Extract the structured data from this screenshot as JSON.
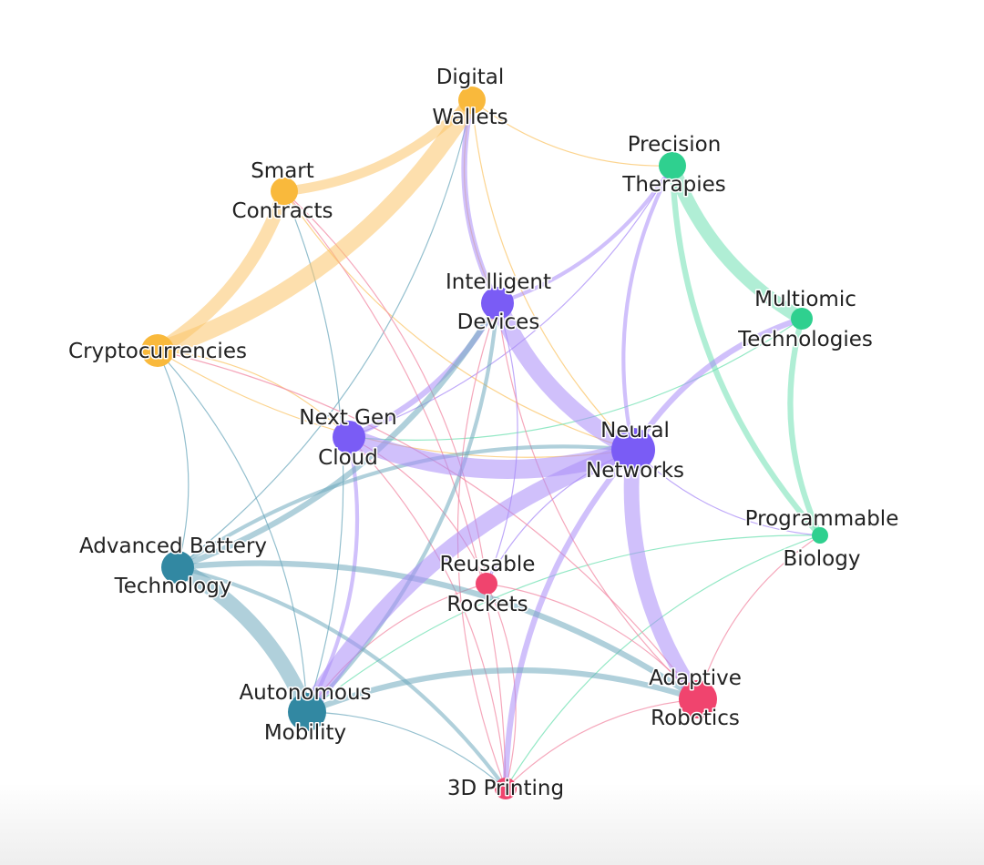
{
  "chart_data": {
    "type": "network",
    "nodes": [
      {
        "id": "digital_wallets",
        "label_lines": [
          "Digital",
          "Wallets"
        ],
        "group": "fintech",
        "size": 3
      },
      {
        "id": "smart_contracts",
        "label_lines": [
          "Smart",
          "Contracts"
        ],
        "group": "fintech",
        "size": 3
      },
      {
        "id": "cryptocurrencies",
        "label_lines": [
          "Cryptocurrencies"
        ],
        "group": "fintech",
        "size": 4
      },
      {
        "id": "precision_therapies",
        "label_lines": [
          "Precision",
          "Therapies"
        ],
        "group": "biotech",
        "size": 3
      },
      {
        "id": "multiomic_technologies",
        "label_lines": [
          "Multiomic",
          "Technologies"
        ],
        "group": "biotech",
        "size": 2
      },
      {
        "id": "programmable_biology",
        "label_lines": [
          "Programmable",
          "Biology"
        ],
        "group": "biotech",
        "size": 1
      },
      {
        "id": "intelligent_devices",
        "label_lines": [
          "Intelligent",
          "Devices"
        ],
        "group": "ai",
        "size": 4
      },
      {
        "id": "next_gen_cloud",
        "label_lines": [
          "Next Gen",
          "Cloud"
        ],
        "group": "ai",
        "size": 4
      },
      {
        "id": "neural_networks",
        "label_lines": [
          "Neural",
          "Networks"
        ],
        "group": "ai",
        "size": 6
      },
      {
        "id": "advanced_battery_technology",
        "label_lines": [
          "Advanced Battery",
          "Technology"
        ],
        "group": "energy",
        "size": 4
      },
      {
        "id": "autonomous_mobility",
        "label_lines": [
          "Autonomous",
          "Mobility"
        ],
        "group": "energy",
        "size": 5
      },
      {
        "id": "reusable_rockets",
        "label_lines": [
          "Reusable",
          "Rockets"
        ],
        "group": "robotics",
        "size": 2
      },
      {
        "id": "adaptive_robotics",
        "label_lines": [
          "Adaptive",
          "Robotics"
        ],
        "group": "robotics",
        "size": 5
      },
      {
        "id": "3d_printing",
        "label_lines": [
          "3D Printing"
        ],
        "group": "robotics",
        "size": 2
      }
    ],
    "edges": [
      {
        "source": "digital_wallets",
        "target": "cryptocurrencies",
        "weight": 9,
        "group": "fintech"
      },
      {
        "source": "smart_contracts",
        "target": "cryptocurrencies",
        "weight": 7,
        "group": "fintech"
      },
      {
        "source": "digital_wallets",
        "target": "smart_contracts",
        "weight": 5,
        "group": "fintech"
      },
      {
        "source": "digital_wallets",
        "target": "precision_therapies",
        "weight": 1,
        "group": "fintech"
      },
      {
        "source": "digital_wallets",
        "target": "intelligent_devices",
        "weight": 1,
        "group": "fintech"
      },
      {
        "source": "digital_wallets",
        "target": "neural_networks",
        "weight": 1,
        "group": "fintech"
      },
      {
        "source": "smart_contracts",
        "target": "neural_networks",
        "weight": 1,
        "group": "fintech"
      },
      {
        "source": "cryptocurrencies",
        "target": "neural_networks",
        "weight": 1,
        "group": "fintech"
      },
      {
        "source": "cryptocurrencies",
        "target": "next_gen_cloud",
        "weight": 1,
        "group": "fintech"
      },
      {
        "source": "precision_therapies",
        "target": "multiomic_technologies",
        "weight": 7,
        "group": "biotech"
      },
      {
        "source": "precision_therapies",
        "target": "programmable_biology",
        "weight": 3,
        "group": "biotech"
      },
      {
        "source": "multiomic_technologies",
        "target": "programmable_biology",
        "weight": 3,
        "group": "biotech"
      },
      {
        "source": "multiomic_technologies",
        "target": "next_gen_cloud",
        "weight": 1,
        "group": "biotech"
      },
      {
        "source": "programmable_biology",
        "target": "autonomous_mobility",
        "weight": 1,
        "group": "biotech"
      },
      {
        "source": "programmable_biology",
        "target": "3d_printing",
        "weight": 1,
        "group": "biotech"
      },
      {
        "source": "intelligent_devices",
        "target": "neural_networks",
        "weight": 9,
        "group": "ai"
      },
      {
        "source": "next_gen_cloud",
        "target": "neural_networks",
        "weight": 10,
        "group": "ai"
      },
      {
        "source": "neural_networks",
        "target": "autonomous_mobility",
        "weight": 9,
        "group": "ai"
      },
      {
        "source": "neural_networks",
        "target": "adaptive_robotics",
        "weight": 8,
        "group": "ai"
      },
      {
        "source": "neural_networks",
        "target": "multiomic_technologies",
        "weight": 3,
        "group": "ai"
      },
      {
        "source": "neural_networks",
        "target": "3d_printing",
        "weight": 3,
        "group": "ai"
      },
      {
        "source": "intelligent_devices",
        "target": "next_gen_cloud",
        "weight": 3,
        "group": "ai"
      },
      {
        "source": "intelligent_devices",
        "target": "digital_wallets",
        "weight": 3,
        "group": "ai"
      },
      {
        "source": "intelligent_devices",
        "target": "precision_therapies",
        "weight": 2,
        "group": "ai"
      },
      {
        "source": "next_gen_cloud",
        "target": "precision_therapies",
        "weight": 1,
        "group": "ai"
      },
      {
        "source": "neural_networks",
        "target": "precision_therapies",
        "weight": 2,
        "group": "ai"
      },
      {
        "source": "next_gen_cloud",
        "target": "autonomous_mobility",
        "weight": 2,
        "group": "ai"
      },
      {
        "source": "neural_networks",
        "target": "programmable_biology",
        "weight": 1,
        "group": "ai"
      },
      {
        "source": "neural_networks",
        "target": "reusable_rockets",
        "weight": 1,
        "group": "ai"
      },
      {
        "source": "intelligent_devices",
        "target": "reusable_rockets",
        "weight": 1,
        "group": "ai"
      },
      {
        "source": "advanced_battery_technology",
        "target": "autonomous_mobility",
        "weight": 8,
        "group": "energy"
      },
      {
        "source": "advanced_battery_technology",
        "target": "intelligent_devices",
        "weight": 3,
        "group": "energy"
      },
      {
        "source": "advanced_battery_technology",
        "target": "adaptive_robotics",
        "weight": 3,
        "group": "energy"
      },
      {
        "source": "advanced_battery_technology",
        "target": "neural_networks",
        "weight": 2,
        "group": "energy"
      },
      {
        "source": "advanced_battery_technology",
        "target": "3d_printing",
        "weight": 2,
        "group": "energy"
      },
      {
        "source": "advanced_battery_technology",
        "target": "cryptocurrencies",
        "weight": 1,
        "group": "energy"
      },
      {
        "source": "advanced_battery_technology",
        "target": "digital_wallets",
        "weight": 1,
        "group": "energy"
      },
      {
        "source": "autonomous_mobility",
        "target": "adaptive_robotics",
        "weight": 3,
        "group": "energy"
      },
      {
        "source": "autonomous_mobility",
        "target": "intelligent_devices",
        "weight": 2,
        "group": "energy"
      },
      {
        "source": "autonomous_mobility",
        "target": "smart_contracts",
        "weight": 1,
        "group": "energy"
      },
      {
        "source": "autonomous_mobility",
        "target": "3d_printing",
        "weight": 1,
        "group": "energy"
      },
      {
        "source": "autonomous_mobility",
        "target": "cryptocurrencies",
        "weight": 1,
        "group": "energy"
      },
      {
        "source": "reusable_rockets",
        "target": "adaptive_robotics",
        "weight": 1,
        "group": "robotics"
      },
      {
        "source": "reusable_rockets",
        "target": "3d_printing",
        "weight": 1,
        "group": "robotics"
      },
      {
        "source": "reusable_rockets",
        "target": "autonomous_mobility",
        "weight": 1,
        "group": "robotics"
      },
      {
        "source": "reusable_rockets",
        "target": "smart_contracts",
        "weight": 1,
        "group": "robotics"
      },
      {
        "source": "reusable_rockets",
        "target": "next_gen_cloud",
        "weight": 1,
        "group": "robotics"
      },
      {
        "source": "adaptive_robotics",
        "target": "3d_printing",
        "weight": 1,
        "group": "robotics"
      },
      {
        "source": "adaptive_robotics",
        "target": "programmable_biology",
        "weight": 1,
        "group": "robotics"
      },
      {
        "source": "adaptive_robotics",
        "target": "intelligent_devices",
        "weight": 1,
        "group": "robotics"
      },
      {
        "source": "adaptive_robotics",
        "target": "cryptocurrencies",
        "weight": 1,
        "group": "robotics"
      },
      {
        "source": "3d_printing",
        "target": "next_gen_cloud",
        "weight": 1,
        "group": "robotics"
      },
      {
        "source": "3d_printing",
        "target": "intelligent_devices",
        "weight": 1,
        "group": "robotics"
      },
      {
        "source": "3d_printing",
        "target": "smart_contracts",
        "weight": 1,
        "group": "robotics"
      }
    ],
    "group_colors": {
      "fintech": "#f9b93c",
      "biotech": "#2fd08f",
      "ai": "#7a5cf5",
      "energy": "#3288a2",
      "robotics": "#f0446e"
    },
    "edge_colors": {
      "fintech": "#fbc56a",
      "biotech": "#6fe0b2",
      "ai": "#a98cf7",
      "energy": "#6fa9bd",
      "robotics": "#f28aa4"
    }
  }
}
